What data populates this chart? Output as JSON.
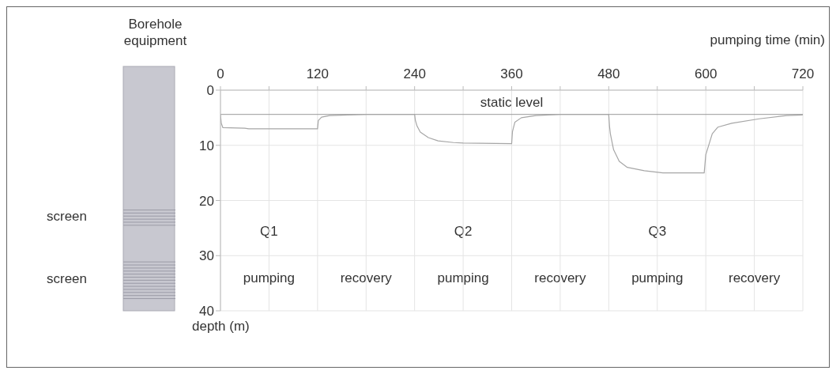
{
  "chart_data": {
    "type": "line",
    "xlabel": "pumping time  (min)",
    "ylabel": "depth (m)",
    "x": [
      0,
      1,
      3,
      30,
      35,
      120,
      121,
      125,
      135,
      180,
      240,
      241,
      243,
      247,
      257,
      269,
      288,
      300,
      360,
      361,
      364,
      372,
      390,
      420,
      480,
      481,
      482,
      486,
      493,
      503,
      524,
      547,
      598,
      600,
      608,
      615,
      632,
      666,
      700,
      719,
      720
    ],
    "series": [
      {
        "color": "#a6a6a6",
        "values": [
          4.4,
          6.0,
          6.8,
          6.9,
          7.0,
          7.0,
          5.5,
          4.9,
          4.6,
          4.4,
          4.4,
          5.5,
          6.5,
          7.6,
          8.6,
          9.2,
          9.5,
          9.6,
          9.7,
          7.5,
          5.8,
          5.0,
          4.6,
          4.4,
          4.4,
          6.6,
          7.9,
          10.8,
          12.9,
          14.0,
          14.6,
          15.0,
          15.0,
          11.7,
          7.9,
          6.7,
          6.0,
          5.2,
          4.6,
          4.5,
          4.4
        ]
      }
    ],
    "xlim": [
      0,
      720
    ],
    "xticks": [
      0,
      {
        "value": 60,
        "label": null
      },
      120,
      {
        "value": 180,
        "label": null
      },
      240,
      {
        "value": 300,
        "label": null
      },
      360,
      {
        "value": 420,
        "label": null
      },
      480,
      {
        "value": 540,
        "label": null
      },
      600,
      {
        "value": 660,
        "label": null
      },
      720
    ],
    "ylim": [
      40,
      0
    ],
    "yticks": [
      0,
      10,
      20,
      30,
      40
    ],
    "grid": true,
    "legend": false,
    "marker": "none",
    "line_style": "solid",
    "ref_lines": [
      {
        "axis": "y",
        "value": 4.4,
        "label": "static level",
        "color": "#999999"
      }
    ],
    "annotations": [
      "Borehole equipment",
      "screen",
      "screen",
      "Q1",
      "Q2",
      "Q3",
      "pumping",
      "recovery",
      "pumping",
      "recovery",
      "pumping",
      "recovery"
    ]
  }
}
